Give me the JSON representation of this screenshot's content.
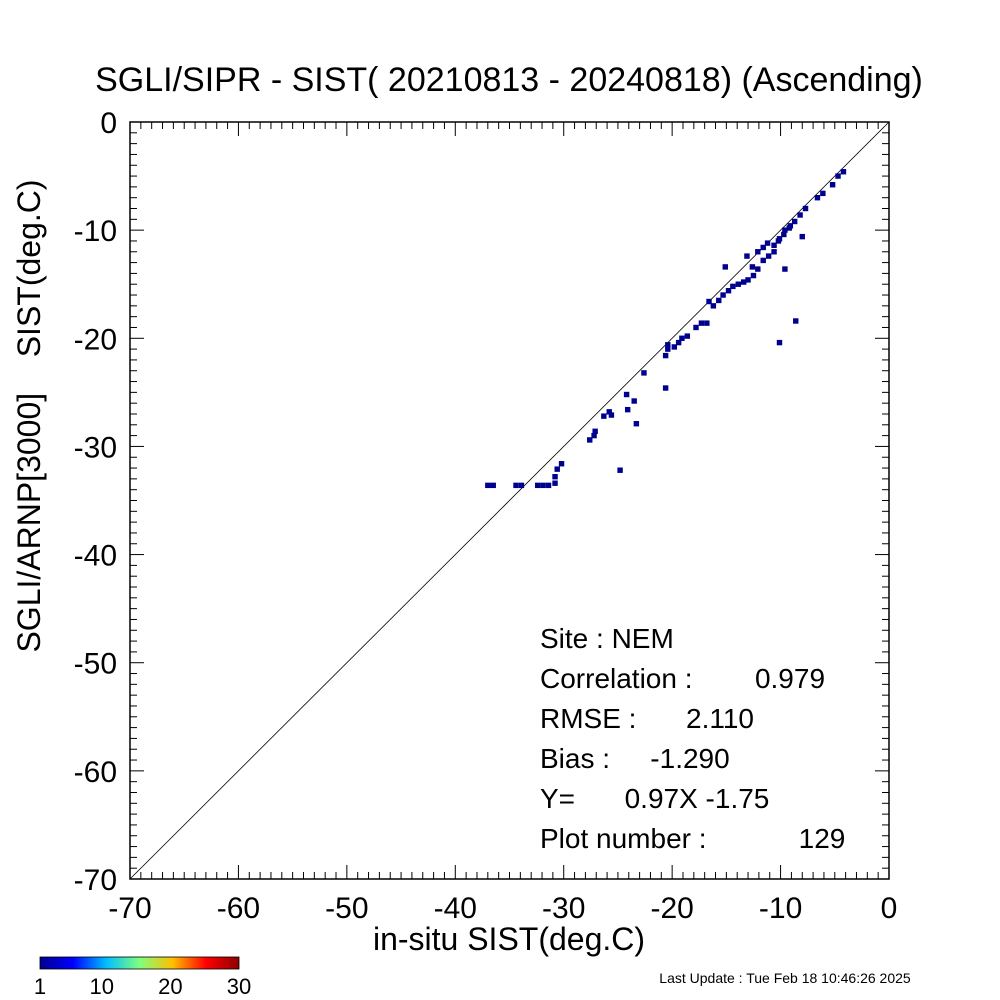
{
  "title": "SGLI/SIPR - SIST( 20210813 - 20240818) (Ascending)",
  "footer": "Last Update : Tue Feb 18 10:46:26 2025",
  "stats": [
    {
      "label": "Site : NEM",
      "value": ""
    },
    {
      "label": "Correlation :",
      "value": "0.979"
    },
    {
      "label": "RMSE :",
      "value": "2.110"
    },
    {
      "label": "Bias :",
      "value": "-1.290"
    },
    {
      "label": "Y=",
      "value": "0.97X  -1.75"
    },
    {
      "label": "Plot number :",
      "value": "129"
    }
  ],
  "colorbar": {
    "ticks": [
      "1",
      "10",
      "20",
      "30"
    ],
    "min": 1,
    "max": 30,
    "colors": [
      "#00008f",
      "#0000ff",
      "#00bfff",
      "#7fff7f",
      "#ffbf00",
      "#ff0000",
      "#8f0000"
    ]
  },
  "chart_data": {
    "type": "scatter",
    "xlabel": "in-situ SIST(deg.C)",
    "ylabel": "SGLI/ARNP[3000]    SIST(deg.C)",
    "xlim": [
      -70,
      0
    ],
    "ylim": [
      -70,
      0
    ],
    "x_ticks": [
      "-70",
      "-60",
      "-50",
      "-40",
      "-30",
      "-20",
      "-10",
      "0"
    ],
    "y_ticks": [
      "0",
      "-10",
      "-20",
      "-30",
      "-40",
      "-50",
      "-60",
      "-70"
    ],
    "one_to_one_line": true,
    "bin_size": 0.5,
    "marker_color": "#00008f",
    "points": [
      [
        -37.0,
        -33.6
      ],
      [
        -36.5,
        -33.6
      ],
      [
        -34.4,
        -33.6
      ],
      [
        -33.9,
        -33.6
      ],
      [
        -32.4,
        -33.6
      ],
      [
        -31.9,
        -33.6
      ],
      [
        -31.4,
        -33.6
      ],
      [
        -30.8,
        -33.4
      ],
      [
        -30.8,
        -32.8
      ],
      [
        -30.6,
        -32.1
      ],
      [
        -30.2,
        -31.6
      ],
      [
        -27.6,
        -29.4
      ],
      [
        -27.2,
        -29.0
      ],
      [
        -27.1,
        -28.6
      ],
      [
        -26.3,
        -27.2
      ],
      [
        -25.8,
        -26.8
      ],
      [
        -25.6,
        -27.1
      ],
      [
        -24.8,
        -32.2
      ],
      [
        -24.2,
        -25.2
      ],
      [
        -24.1,
        -26.6
      ],
      [
        -23.5,
        -25.8
      ],
      [
        -23.3,
        -27.9
      ],
      [
        -22.6,
        -23.2
      ],
      [
        -20.6,
        -24.6
      ],
      [
        -20.6,
        -21.6
      ],
      [
        -20.4,
        -21.0
      ],
      [
        -20.4,
        -20.6
      ],
      [
        -19.8,
        -20.8
      ],
      [
        -19.4,
        -20.4
      ],
      [
        -19.1,
        -20.0
      ],
      [
        -18.6,
        -19.8
      ],
      [
        -17.8,
        -19.0
      ],
      [
        -17.3,
        -18.6
      ],
      [
        -16.8,
        -18.6
      ],
      [
        -16.6,
        -16.6
      ],
      [
        -16.2,
        -17.0
      ],
      [
        -15.7,
        -16.5
      ],
      [
        -15.3,
        -16.0
      ],
      [
        -14.8,
        -15.6
      ],
      [
        -14.4,
        -15.2
      ],
      [
        -13.9,
        -15.0
      ],
      [
        -13.4,
        -14.8
      ],
      [
        -13.0,
        -14.6
      ],
      [
        -12.5,
        -14.2
      ],
      [
        -15.1,
        -13.4
      ],
      [
        -13.1,
        -12.4
      ],
      [
        -12.1,
        -12.0
      ],
      [
        -11.6,
        -11.6
      ],
      [
        -11.2,
        -11.2
      ],
      [
        -12.6,
        -13.4
      ],
      [
        -10.6,
        -11.4
      ],
      [
        -10.2,
        -11.0
      ],
      [
        -9.7,
        -10.4
      ],
      [
        -9.2,
        -9.8
      ],
      [
        -8.7,
        -9.2
      ],
      [
        -8.2,
        -8.6
      ],
      [
        -7.7,
        -8.0
      ],
      [
        -6.6,
        -7.0
      ],
      [
        -6.1,
        -6.6
      ],
      [
        -5.2,
        -5.8
      ],
      [
        -4.7,
        -5.0
      ],
      [
        -4.2,
        -4.6
      ],
      [
        -12.1,
        -13.6
      ],
      [
        -11.6,
        -12.8
      ],
      [
        -11.1,
        -12.4
      ],
      [
        -10.6,
        -12.0
      ],
      [
        -10.1,
        -10.8
      ],
      [
        -9.6,
        -10.0
      ],
      [
        -9.1,
        -9.6
      ],
      [
        -9.6,
        -13.6
      ],
      [
        -8.0,
        -10.6
      ],
      [
        -8.6,
        -18.4
      ],
      [
        -10.1,
        -20.4
      ]
    ]
  }
}
